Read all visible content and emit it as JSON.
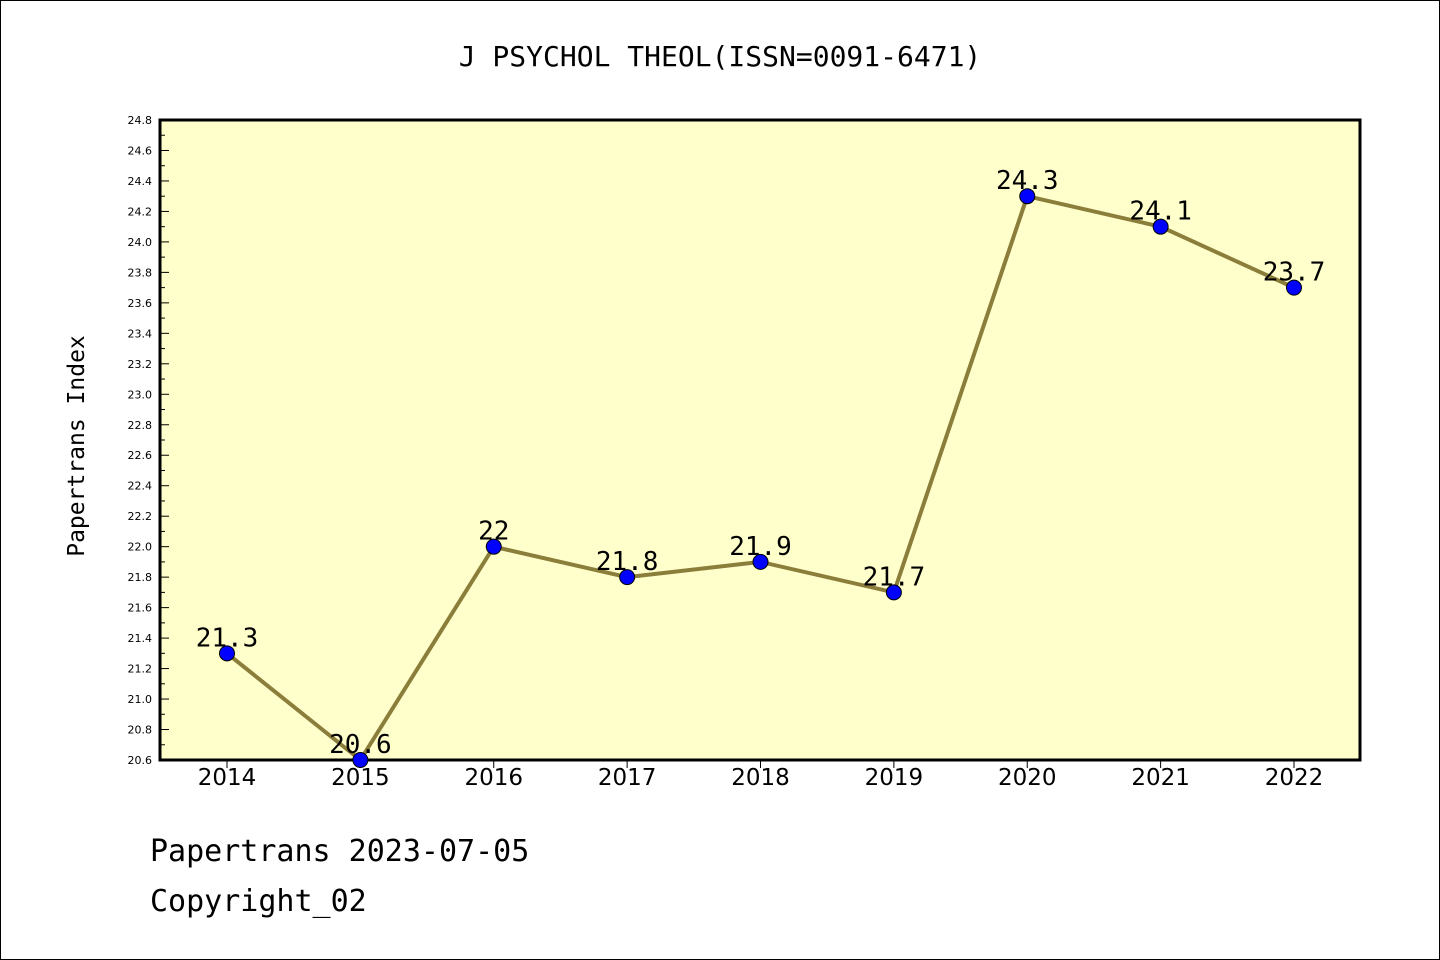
{
  "chart_data": {
    "type": "line",
    "title": "J PSYCHOL THEOL(ISSN=0091-6471)",
    "xlabel": "",
    "ylabel": "Papertrans Index",
    "categories": [
      "2014",
      "2015",
      "2016",
      "2017",
      "2018",
      "2019",
      "2020",
      "2021",
      "2022"
    ],
    "series": [
      {
        "values": [
          21.3,
          20.6,
          22.0,
          21.8,
          21.9,
          21.7,
          24.3,
          24.1,
          23.7
        ]
      }
    ],
    "data_labels": [
      "21.3",
      "20.6",
      "22",
      "21.8",
      "21.9",
      "21.7",
      "24.3",
      "24.1",
      "23.7"
    ],
    "ylim": [
      20.6,
      24.8
    ],
    "yticks": [
      "20.6",
      "20.8",
      "21.0",
      "21.2",
      "21.4",
      "21.6",
      "21.8",
      "22.0",
      "22.2",
      "22.4",
      "22.6",
      "22.8",
      "23.0",
      "23.2",
      "23.4",
      "23.6",
      "23.8",
      "24.0",
      "24.2",
      "24.4",
      "24.6",
      "24.8"
    ],
    "grid": false,
    "colors": {
      "plot_background": "#FFFFCC",
      "line": "#8B7D3A",
      "marker": "#0000FF"
    }
  },
  "footer": {
    "line1": "Papertrans 2023-07-05",
    "line2": "Copyright_02"
  }
}
